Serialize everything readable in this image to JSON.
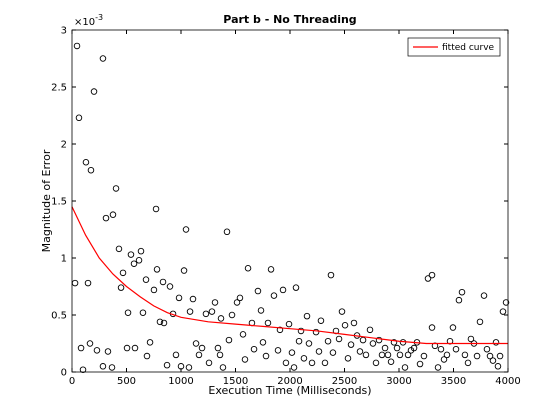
{
  "chart_data": {
    "type": "scatter",
    "title": "Part b - No Threading",
    "x_label": "Execution Time (Milliseconds)",
    "y_label": "Magnitude of Error",
    "y_multiplier": "×10",
    "y_multiplier_exponent": "-3",
    "xlim": [
      0,
      4000
    ],
    "xticks": [
      0,
      500,
      1000,
      1500,
      2000,
      2500,
      3000,
      3500,
      4000
    ],
    "ylim": [
      0,
      3
    ],
    "yticks": [
      0,
      0.5,
      1,
      1.5,
      2,
      2.5,
      3
    ],
    "grid": false,
    "legend": "top-right",
    "series": [
      {
        "type": "scatter",
        "color": "#000000",
        "x": [
          46,
          64,
          28,
          83,
          128,
          174,
          202,
          147,
          165,
          101,
          229,
          284,
          312,
          376,
          404,
          330,
          284,
          367,
          431,
          450,
          468,
          505,
          514,
          541,
          569,
          578,
          615,
          633,
          651,
          679,
          688,
          716,
          752,
          771,
          780,
          807,
          835,
          844,
          872,
          899,
          927,
          954,
          982,
          1000,
          1028,
          1046,
          1073,
          1083,
          1110,
          1138,
          1165,
          1193,
          1229,
          1257,
          1284,
          1312,
          1339,
          1358,
          1367,
          1385,
          1422,
          1440,
          1468,
          1514,
          1541,
          1569,
          1587,
          1615,
          1651,
          1670,
          1706,
          1734,
          1752,
          1780,
          1798,
          1826,
          1853,
          1890,
          1908,
          1936,
          1963,
          1991,
          2018,
          2037,
          2055,
          2083,
          2101,
          2128,
          2156,
          2174,
          2202,
          2239,
          2266,
          2284,
          2321,
          2349,
          2376,
          2394,
          2422,
          2450,
          2477,
          2505,
          2532,
          2560,
          2587,
          2615,
          2642,
          2670,
          2697,
          2734,
          2761,
          2789,
          2817,
          2844,
          2872,
          2899,
          2927,
          2954,
          2982,
          3009,
          3037,
          3055,
          3083,
          3110,
          3138,
          3165,
          3193,
          3229,
          3266,
          3303,
          3303,
          3330,
          3358,
          3385,
          3413,
          3440,
          3468,
          3495,
          3523,
          3550,
          3578,
          3605,
          3633,
          3660,
          3688,
          3716,
          3743,
          3780,
          3807,
          3835,
          3862,
          3890,
          3927,
          3954,
          3982,
          3908
        ],
        "values": [
          2.86,
          2.23,
          0.78,
          0.21,
          1.84,
          1.77,
          2.46,
          0.78,
          0.25,
          0.02,
          0.19,
          2.75,
          1.35,
          1.38,
          1.61,
          0.18,
          0.05,
          0.04,
          1.08,
          0.74,
          0.87,
          0.21,
          0.52,
          1.03,
          0.95,
          0.21,
          0.98,
          1.06,
          0.52,
          0.81,
          0.14,
          0.26,
          0.72,
          1.43,
          0.9,
          0.44,
          0.79,
          0.43,
          0.06,
          0.75,
          0.51,
          0.15,
          0.65,
          0.05,
          0.89,
          1.25,
          0.04,
          0.53,
          0.64,
          0.25,
          0.15,
          0.21,
          0.51,
          0.08,
          0.53,
          0.61,
          0.21,
          0.15,
          0.47,
          0.04,
          1.23,
          0.28,
          0.5,
          0.61,
          0.65,
          0.33,
          0.11,
          0.91,
          0.43,
          0.2,
          0.71,
          0.54,
          0.26,
          0.14,
          0.43,
          0.9,
          0.67,
          0.19,
          0.37,
          0.72,
          0.08,
          0.42,
          0.17,
          0.04,
          0.74,
          0.27,
          0.36,
          0.12,
          0.49,
          0.25,
          0.08,
          0.35,
          0.18,
          0.45,
          0.08,
          0.27,
          0.85,
          0.17,
          0.36,
          0.29,
          0.53,
          0.41,
          0.12,
          0.24,
          0.43,
          0.32,
          0.18,
          0.28,
          0.15,
          0.37,
          0.25,
          0.08,
          0.28,
          0.15,
          0.21,
          0.15,
          0.09,
          0.26,
          0.21,
          0.15,
          0.26,
          0.04,
          0.15,
          0.19,
          0.21,
          0.26,
          0.07,
          0.14,
          0.82,
          0.85,
          0.39,
          0.23,
          0.04,
          0.2,
          0.11,
          0.15,
          0.27,
          0.39,
          0.2,
          0.63,
          0.7,
          0.15,
          0.08,
          0.29,
          0.25,
          0.14,
          0.44,
          0.67,
          0.2,
          0.14,
          0.1,
          0.26,
          0.14,
          0.53,
          0.61,
          0.05
        ]
      },
      {
        "type": "line",
        "name": "fitted curve",
        "color": "#ff0000",
        "x": [
          0,
          125,
          250,
          375,
          500,
          625,
          750,
          875,
          1000,
          1250,
          1500,
          1750,
          2000,
          2250,
          2500,
          2750,
          3000,
          3250,
          3500,
          3750,
          4000
        ],
        "values": [
          1.45,
          1.2,
          1.0,
          0.86,
          0.75,
          0.66,
          0.58,
          0.52,
          0.48,
          0.44,
          0.42,
          0.4,
          0.38,
          0.36,
          0.33,
          0.3,
          0.27,
          0.25,
          0.25,
          0.25,
          0.25
        ]
      }
    ]
  }
}
